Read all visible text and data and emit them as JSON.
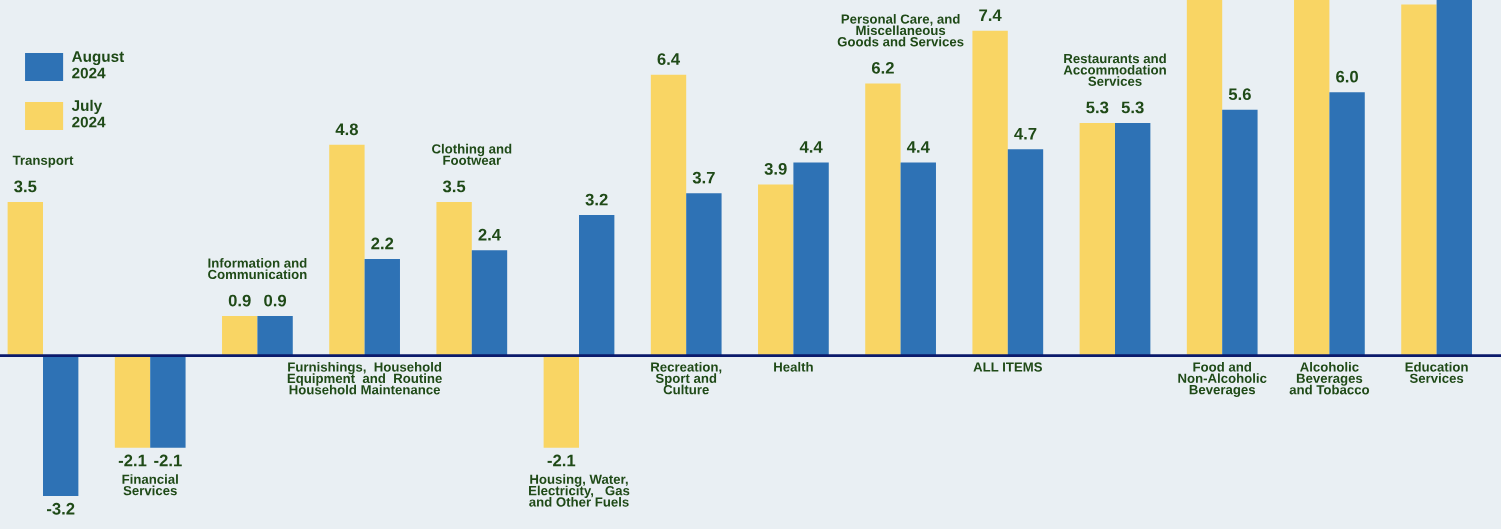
{
  "chart_data": {
    "type": "bar",
    "categories": [
      "Transport",
      "Financial\nServices",
      "Information and\nCommunication",
      "Furnishings,  Household\nEquipment  and  Routine\nHousehold Maintenance",
      "Clothing and\nFootwear",
      "Housing, Water,\nElectricity,   Gas\nand Other Fuels",
      "Recreation,\nSport and\nCulture",
      "Health",
      "Personal Care, and\nMiscellaneous\nGoods and Services",
      "ALL ITEMS",
      "Restaurants and\nAccommodation\nServices",
      "Food and\nNon-Alcoholic\nBeverages",
      "Alcoholic\nBeverages\nand Tobacco",
      "Education\nServices"
    ],
    "series": [
      {
        "name": "July\n2024",
        "color": "#f9d564",
        "values": [
          3.5,
          -2.1,
          0.9,
          4.8,
          3.5,
          -2.1,
          6.4,
          3.9,
          6.2,
          7.4,
          5.3,
          8.1,
          8.1,
          8.0
        ],
        "value_labels": [
          "3.5",
          "-2.1",
          "0.9",
          "4.8",
          "3.5",
          "-2.1",
          "6.4",
          "3.9",
          "6.2",
          "7.4",
          "5.3",
          null,
          null,
          null
        ]
      },
      {
        "name": "August\n2024",
        "color": "#2e72b5",
        "values": [
          -3.2,
          -2.1,
          0.9,
          2.2,
          2.4,
          3.2,
          3.7,
          4.4,
          4.4,
          4.7,
          5.3,
          5.6,
          6.0,
          8.1
        ],
        "value_labels": [
          "-3.2",
          "-2.1",
          "0.9",
          "2.2",
          "2.4",
          "3.2",
          "3.7",
          "4.4",
          "4.4",
          "4.7",
          "5.3",
          "5.6",
          "6.0",
          null
        ]
      }
    ],
    "ylim": [
      -3.95,
      8.1
    ],
    "legend": "top left"
  }
}
